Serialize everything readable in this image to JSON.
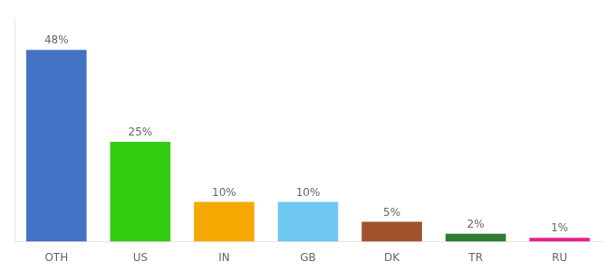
{
  "chart_data": {
    "type": "bar",
    "categories": [
      "OTH",
      "US",
      "IN",
      "GB",
      "DK",
      "TR",
      "RU"
    ],
    "values": [
      48,
      25,
      10,
      10,
      5,
      2,
      1
    ],
    "value_labels": [
      "48%",
      "25%",
      "10%",
      "10%",
      "5%",
      "2%",
      "1%"
    ],
    "colors": [
      "#4472C4",
      "#33CC11",
      "#F5A800",
      "#70C8F0",
      "#A0522D",
      "#2E7D32",
      "#E91E8C"
    ],
    "ylim": [
      0,
      56
    ],
    "grid": false,
    "data_labels": true,
    "tick_labels": "x"
  }
}
